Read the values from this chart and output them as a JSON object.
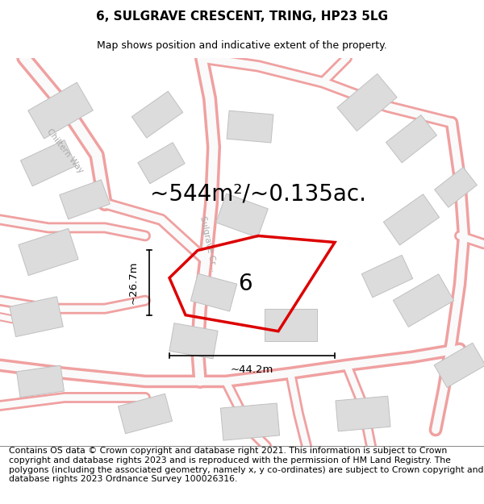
{
  "title": "6, SULGRAVE CRESCENT, TRING, HP23 5LG",
  "subtitle": "Map shows position and indicative extent of the property.",
  "area_label": "~544m²/~0.135ac.",
  "number_label": "6",
  "width_label": "~44.2m",
  "height_label": "~26.7m",
  "footer_text": "Contains OS data © Crown copyright and database right 2021. This information is subject to Crown copyright and database rights 2023 and is reproduced with the permission of HM Land Registry. The polygons (including the associated geometry, namely x, y co-ordinates) are subject to Crown copyright and database rights 2023 Ordnance Survey 100026316.",
  "bg_color": "#ffffff",
  "road_outline_color": "#f0a0a0",
  "road_fill_color": "#ffffff",
  "building_face_color": "#e0e0e0",
  "building_edge_color": "#c8c8c8",
  "highlight_color": "#dd0000",
  "street_color": "#aaaaaa",
  "title_fontsize": 11,
  "subtitle_fontsize": 9,
  "footer_fontsize": 7.8,
  "area_fontsize": 20,
  "number_fontsize": 20,
  "dim_fontsize": 9.5
}
